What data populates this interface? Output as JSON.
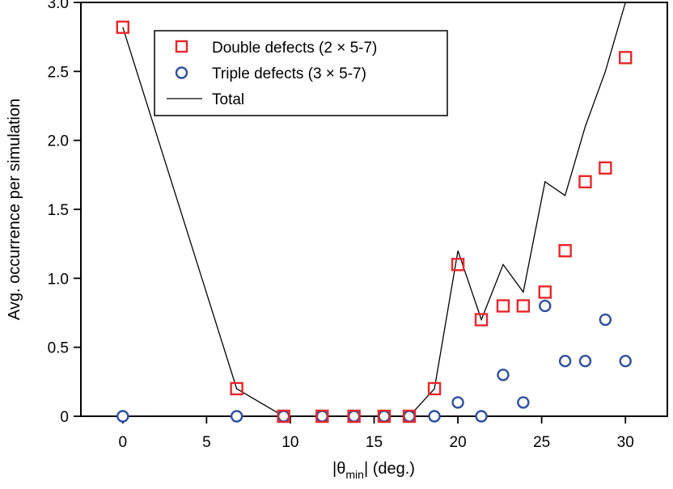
{
  "chart_data": {
    "type": "scatter",
    "xlabel_pre": "|θ",
    "xlabel_sub": "min",
    "xlabel_post": "| (deg.)",
    "ylabel": "Avg. occurrence per simulation",
    "xlim": [
      -2.5,
      32.5
    ],
    "ylim": [
      0,
      3.0
    ],
    "x_ticks": [
      0,
      5,
      10,
      15,
      20,
      25,
      30
    ],
    "x_tick_labels": [
      "0",
      "5",
      "10",
      "15",
      "20",
      "25",
      "30"
    ],
    "y_ticks": [
      0,
      0.5,
      1.0,
      1.5,
      2.0,
      2.5,
      3.0
    ],
    "y_tick_labels": [
      "0",
      "0.5",
      "1.0",
      "1.5",
      "2.0",
      "2.5",
      "3.0"
    ],
    "grid": false,
    "legend_position": "top-center",
    "series": [
      {
        "name": "Double defects (2 × 5-7)",
        "marker": "square",
        "color": "#e8262b",
        "x": [
          0,
          6.8,
          9.6,
          11.9,
          13.8,
          15.6,
          17.1,
          18.6,
          20.0,
          21.4,
          22.7,
          23.9,
          25.2,
          26.4,
          27.6,
          28.8,
          30.0
        ],
        "y": [
          2.82,
          0.2,
          0,
          0,
          0,
          0,
          0,
          0.2,
          1.1,
          0.7,
          0.8,
          0.8,
          0.9,
          1.2,
          1.7,
          1.8,
          2.6
        ]
      },
      {
        "name": "Triple defects (3 × 5-7)",
        "marker": "circle",
        "color": "#2e4f9e",
        "x": [
          0,
          6.8,
          9.6,
          11.9,
          13.8,
          15.6,
          17.1,
          18.6,
          20.0,
          21.4,
          22.7,
          23.9,
          25.2,
          26.4,
          27.6,
          28.8,
          30.0
        ],
        "y": [
          0,
          0,
          0,
          0,
          0,
          0,
          0,
          0,
          0.1,
          0,
          0.3,
          0.1,
          0.8,
          0.4,
          0.4,
          0.7,
          0.4
        ]
      },
      {
        "name": "Total",
        "marker": "line",
        "color": "#000000",
        "x": [
          0,
          6.8,
          9.6,
          11.9,
          13.8,
          15.6,
          17.1,
          18.6,
          20.0,
          21.4,
          22.7,
          23.9,
          25.2,
          26.4,
          27.6,
          28.8,
          30.0
        ],
        "y": [
          2.82,
          0.2,
          0,
          0,
          0,
          0,
          0,
          0.2,
          1.2,
          0.7,
          1.1,
          0.9,
          1.7,
          1.6,
          2.1,
          2.5,
          3.0
        ]
      }
    ]
  }
}
